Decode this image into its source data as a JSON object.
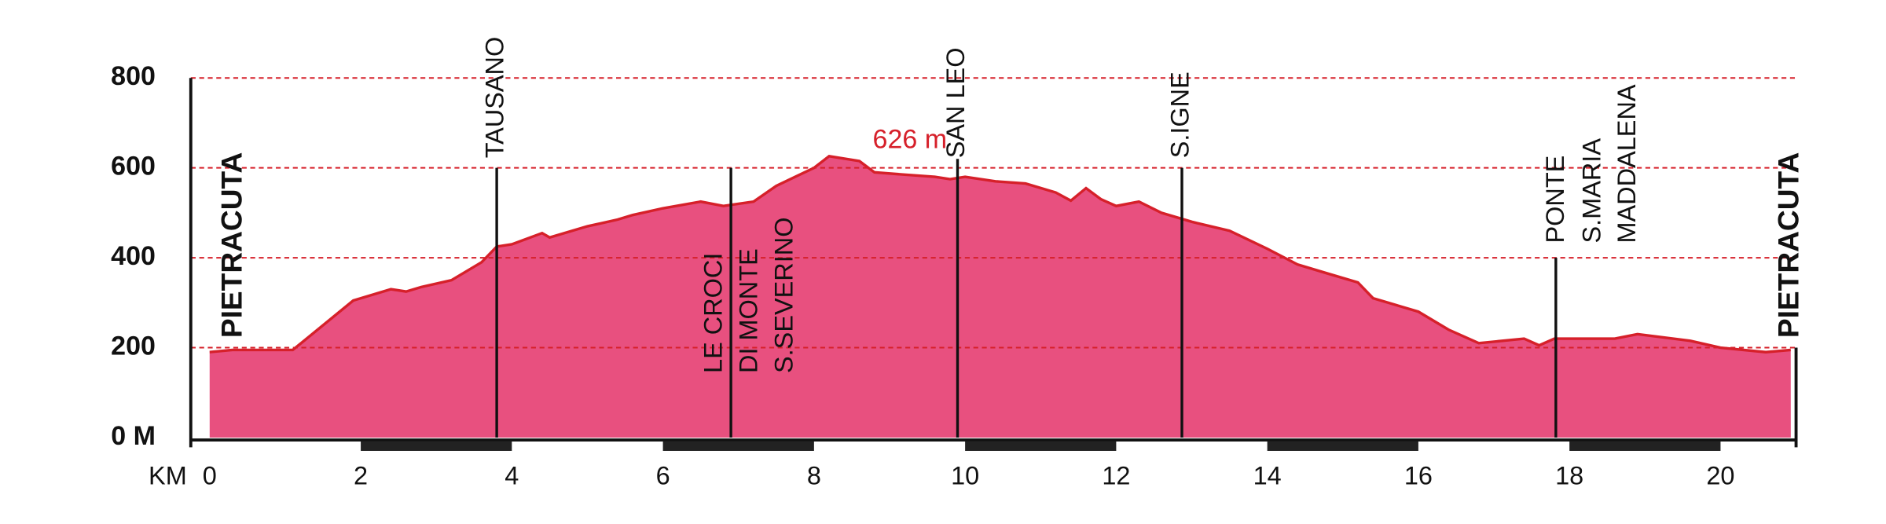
{
  "chart_data": {
    "type": "area",
    "color": "#e8507f",
    "line_color": "#d6202a",
    "grid_color": "#d6202a",
    "x_label": "KM",
    "xlim": [
      -0.25,
      21
    ],
    "ylim": [
      0,
      800
    ],
    "xticks": [
      0,
      2,
      4,
      6,
      8,
      10,
      12,
      14,
      16,
      18,
      20
    ],
    "yticks": [
      {
        "value": 0,
        "label": "0 M"
      },
      200,
      400,
      600,
      800
    ],
    "grid": true,
    "x": [
      0,
      0.3,
      1,
      1.1,
      1.9,
      2.4,
      2.6,
      2.8,
      3.2,
      3.6,
      3.8,
      4.0,
      4.4,
      4.5,
      5.0,
      5.4,
      5.6,
      6.0,
      6.5,
      6.8,
      7.2,
      7.5,
      8.0,
      8.2,
      8.6,
      8.8,
      9.2,
      9.6,
      9.8,
      10.0,
      10.4,
      10.8,
      11.2,
      11.4,
      11.6,
      11.8,
      12.0,
      12.3,
      12.6,
      13.0,
      13.5,
      14.0,
      14.4,
      14.8,
      15.2,
      15.4,
      16.0,
      16.4,
      16.8,
      17.4,
      17.6,
      17.8,
      18.0,
      18.6,
      18.9,
      19.6,
      20.0,
      20.6,
      20.93
    ],
    "values": [
      190,
      195,
      195,
      195,
      305,
      330,
      325,
      335,
      350,
      390,
      425,
      430,
      455,
      445,
      470,
      485,
      495,
      510,
      525,
      515,
      525,
      560,
      600,
      626,
      615,
      590,
      585,
      580,
      575,
      580,
      570,
      565,
      545,
      527,
      555,
      530,
      515,
      525,
      500,
      480,
      460,
      420,
      385,
      365,
      345,
      310,
      280,
      240,
      210,
      220,
      205,
      220,
      220,
      220,
      230,
      215,
      200,
      190,
      195
    ],
    "annotation": {
      "text": "626 m",
      "value": 626,
      "x": 8.2
    },
    "places": [
      {
        "lines": [
          "PIETRACUTA"
        ],
        "km": 0
      },
      {
        "lines": [
          "TAUSANO"
        ],
        "km": 3.8,
        "marker_top": 600
      },
      {
        "lines": [
          "LE CROCI",
          "DI MONTE",
          "S.SEVERINO"
        ],
        "km": 6.9,
        "marker_top": 600
      },
      {
        "lines": [
          "SAN LEO"
        ],
        "km": 9.9,
        "marker_top": 620
      },
      {
        "lines": [
          "S.IGNE"
        ],
        "km": 12.87,
        "marker_top": 600
      },
      {
        "lines": [
          "PONTE",
          "S.MARIA",
          "MADDALENA"
        ],
        "km": 17.82,
        "marker_top": 400
      },
      {
        "lines": [
          "PIETRACUTA"
        ],
        "km": 20.93
      }
    ]
  }
}
